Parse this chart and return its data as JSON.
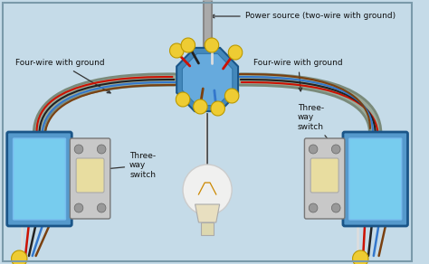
{
  "bg_color": "#c5dbe8",
  "border_color": "#7a9aaa",
  "labels": {
    "power_source": "Power source (two-wire with ground)",
    "four_wire_left": "Four-wire with ground",
    "four_wire_right": "Four-wire with ground",
    "three_way_left": "Three-\nway\nswitch",
    "three_way_right": "Three-\nway\nswitch"
  },
  "wire_colors": {
    "red": "#cc1100",
    "black": "#222222",
    "white": "#dddddd",
    "blue": "#3377cc",
    "brown": "#7a4010",
    "ground_bare": "#bbaa44",
    "conduit": "#9aaa9a"
  },
  "font_size": 7.0
}
